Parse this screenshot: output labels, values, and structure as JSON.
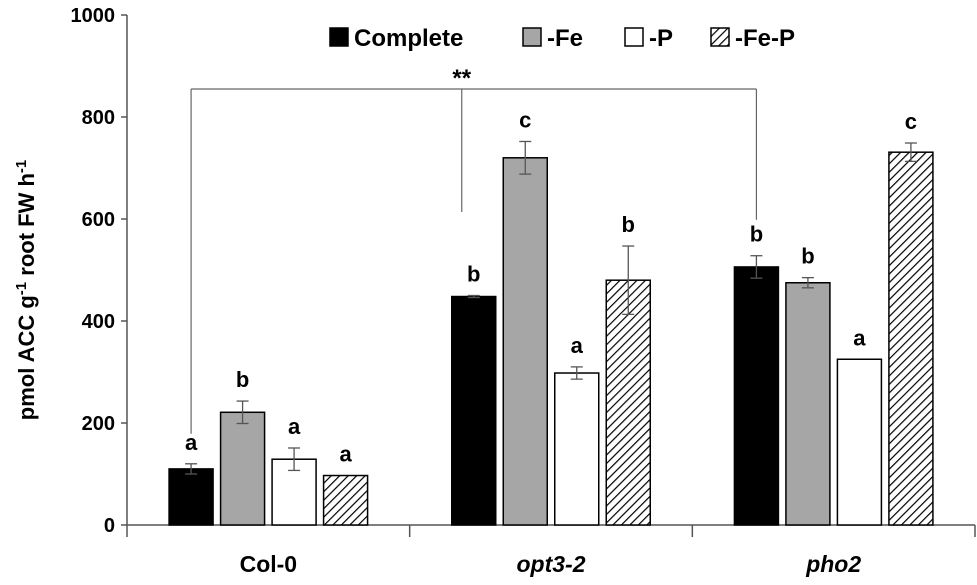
{
  "chart_data": {
    "type": "bar",
    "ylabel": "pmol ACC g-1 root FW h-1",
    "ylabel_parts": {
      "a": "pmol ACC g",
      "b": "-1",
      "c": " root FW h",
      "d": "-1"
    },
    "ylim": [
      0,
      1000
    ],
    "yticks": [
      0,
      200,
      400,
      600,
      800,
      1000
    ],
    "categories": [
      "Col-0",
      "opt3-2",
      "pho2"
    ],
    "category_italic": [
      false,
      true,
      true
    ],
    "series": [
      {
        "name": "Complete",
        "fill": "#000000",
        "pattern": "solid",
        "values": [
          110,
          448,
          506
        ],
        "errors": [
          10,
          2,
          22
        ],
        "letters": [
          "a",
          "b",
          "b"
        ]
      },
      {
        "name": "-Fe",
        "fill": "#a6a6a6",
        "pattern": "solid",
        "values": [
          221,
          720,
          475
        ],
        "errors": [
          22,
          32,
          10
        ],
        "letters": [
          "b",
          "c",
          "b"
        ]
      },
      {
        "name": "-P",
        "fill": "#ffffff",
        "pattern": "solid",
        "values": [
          129,
          298,
          325
        ],
        "errors": [
          22,
          12,
          0
        ],
        "letters": [
          "a",
          "a",
          "a"
        ]
      },
      {
        "name": "-Fe-P",
        "fill": "#ffffff",
        "pattern": "hatch",
        "values": [
          97,
          480,
          731
        ],
        "errors": [
          0,
          67,
          18
        ],
        "letters": [
          "a",
          "b",
          "c"
        ]
      }
    ],
    "significance": "**",
    "legend_position": "top",
    "grid": false
  }
}
